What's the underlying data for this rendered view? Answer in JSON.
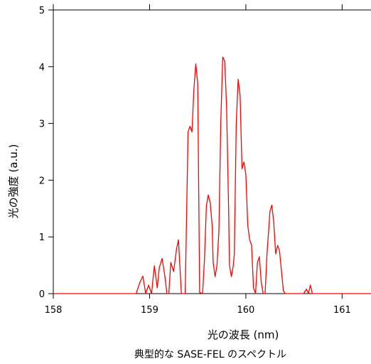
{
  "chart_data": {
    "type": "line",
    "xlabel": "光の波長 (nm)",
    "ylabel": "光の強度 (a.u.)",
    "caption": "典型的な SASE-FEL のスペクトル",
    "xlim": [
      158,
      161.3
    ],
    "ylim": [
      0,
      5
    ],
    "x_ticks": [
      158,
      159,
      160,
      161
    ],
    "y_ticks": [
      0,
      1,
      2,
      3,
      4,
      5
    ],
    "grid": false,
    "series": [
      {
        "color": "#ff0000",
        "points": [
          [
            158.0,
            0.0
          ],
          [
            158.86,
            0.0
          ],
          [
            158.9,
            0.2
          ],
          [
            158.93,
            0.31
          ],
          [
            158.96,
            0.0
          ],
          [
            158.99,
            0.15
          ],
          [
            159.02,
            0.0
          ],
          [
            159.05,
            0.49
          ],
          [
            159.08,
            0.1
          ],
          [
            159.1,
            0.45
          ],
          [
            159.13,
            0.62
          ],
          [
            159.16,
            0.3
          ],
          [
            159.18,
            0.0
          ],
          [
            159.2,
            0.0
          ],
          [
            159.22,
            0.55
          ],
          [
            159.25,
            0.39
          ],
          [
            159.28,
            0.79
          ],
          [
            159.3,
            0.95
          ],
          [
            159.33,
            0.0
          ],
          [
            159.37,
            0.0
          ],
          [
            159.4,
            2.85
          ],
          [
            159.42,
            2.95
          ],
          [
            159.44,
            2.85
          ],
          [
            159.46,
            3.6
          ],
          [
            159.48,
            4.05
          ],
          [
            159.5,
            3.7
          ],
          [
            159.52,
            0.02
          ],
          [
            159.55,
            0.0
          ],
          [
            159.57,
            0.6
          ],
          [
            159.59,
            1.55
          ],
          [
            159.61,
            1.74
          ],
          [
            159.63,
            1.6
          ],
          [
            159.65,
            1.2
          ],
          [
            159.66,
            0.55
          ],
          [
            159.68,
            0.3
          ],
          [
            159.7,
            0.5
          ],
          [
            159.72,
            1.1
          ],
          [
            159.74,
            3.05
          ],
          [
            159.76,
            4.17
          ],
          [
            159.78,
            4.1
          ],
          [
            159.8,
            3.3
          ],
          [
            159.82,
            1.6
          ],
          [
            159.83,
            0.5
          ],
          [
            159.85,
            0.3
          ],
          [
            159.87,
            0.5
          ],
          [
            159.88,
            0.7
          ],
          [
            159.9,
            3.0
          ],
          [
            159.92,
            3.78
          ],
          [
            159.94,
            3.5
          ],
          [
            159.96,
            2.2
          ],
          [
            159.98,
            2.32
          ],
          [
            160.0,
            2.1
          ],
          [
            160.02,
            1.2
          ],
          [
            160.04,
            0.95
          ],
          [
            160.06,
            0.85
          ],
          [
            160.08,
            0.1
          ],
          [
            160.1,
            0.0
          ],
          [
            160.12,
            0.55
          ],
          [
            160.14,
            0.65
          ],
          [
            160.16,
            0.2
          ],
          [
            160.18,
            0.0
          ],
          [
            160.2,
            0.0
          ],
          [
            160.22,
            0.7
          ],
          [
            160.25,
            1.45
          ],
          [
            160.27,
            1.56
          ],
          [
            160.29,
            1.25
          ],
          [
            160.31,
            0.7
          ],
          [
            160.33,
            0.85
          ],
          [
            160.35,
            0.75
          ],
          [
            160.37,
            0.4
          ],
          [
            160.39,
            0.05
          ],
          [
            160.41,
            0.0
          ],
          [
            160.6,
            0.0
          ],
          [
            160.63,
            0.08
          ],
          [
            160.65,
            0.0
          ],
          [
            160.67,
            0.15
          ],
          [
            160.69,
            0.0
          ],
          [
            161.3,
            0.0
          ]
        ]
      }
    ]
  }
}
